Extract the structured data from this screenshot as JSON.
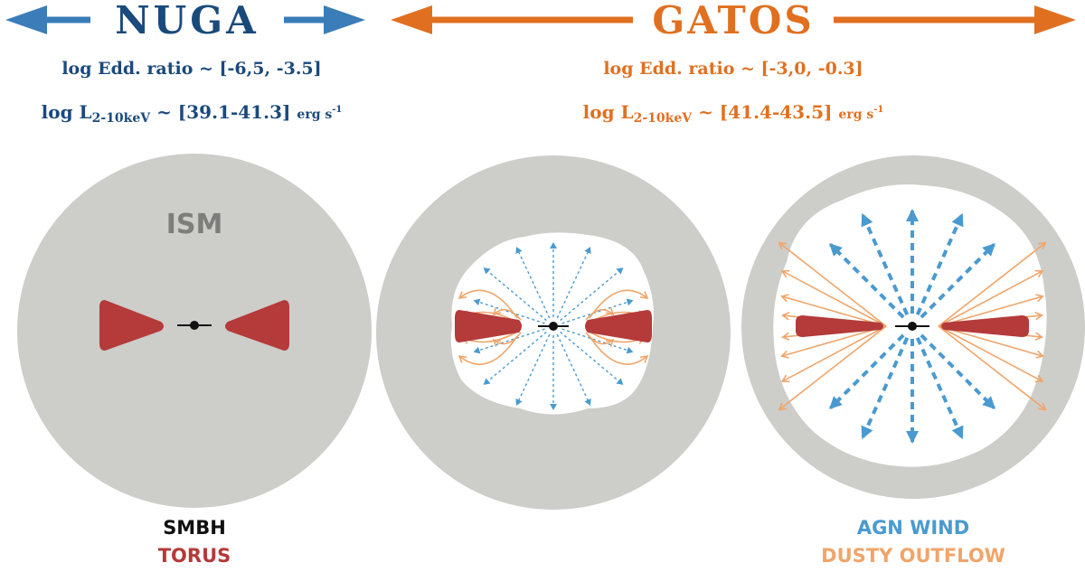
{
  "header": {
    "nuga_label": "NUGA",
    "gatos_label": "GATOS"
  },
  "nuga_info": {
    "edd_text": "log Edd. ratio ~  [-6,5, -3.5]",
    "lum_prefix": "log L",
    "lum_sub": "2-10keV",
    "lum_range": " ~ [39.1-41.3] ",
    "lum_unit": "erg s",
    "lum_unit_sup": "-1"
  },
  "gatos_info": {
    "edd_text": "log Edd. ratio ~ [-3,0, -0.3]",
    "lum_prefix": "log L",
    "lum_sub": "2-10keV",
    "lum_range": " ~ [41.4-43.5] ",
    "lum_unit": "erg s",
    "lum_unit_sup": "-1"
  },
  "panel1": {
    "ism_label": "ISM"
  },
  "legend": {
    "smbh": "SMBH",
    "torus": "TORUS",
    "agn_wind": "AGN WIND",
    "dusty_outflow": "DUSTY OUTFLOW"
  },
  "colors": {
    "nuga_blue": "#1a4a7c",
    "nuga_arrow": "#3a7db8",
    "gatos_orange": "#e07020",
    "circle_gray": "#cdcdc9",
    "ism_text": "#7d7d7b",
    "torus_red": "#b53a3a",
    "wind_blue": "#4a9ad0",
    "outflow_orange": "#f0a56a",
    "smbh_black": "#111111"
  }
}
